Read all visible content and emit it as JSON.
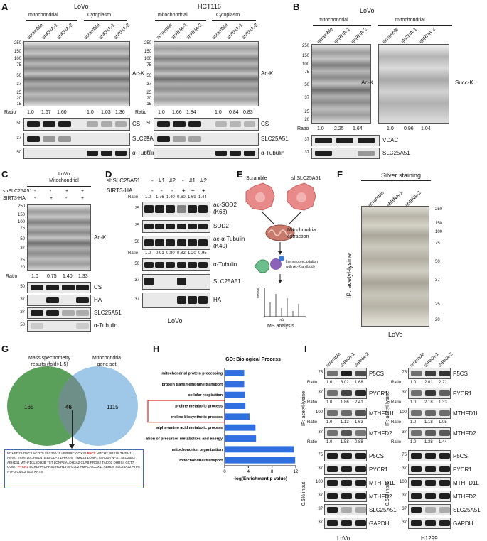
{
  "panels": {
    "A": {
      "letter": "A",
      "left": {
        "cell": "LoVo",
        "groups": [
          "mitochondrial",
          "Cytoplasm"
        ],
        "lanes": [
          "scramble",
          "shRNA-1",
          "shRNA-2",
          "scramble",
          "shRNA-1",
          "shRNA-2"
        ],
        "mw_main": [
          "250",
          "150",
          "100",
          "75",
          "50",
          "37",
          "25",
          "20",
          "15"
        ],
        "blot_label": "Ac-K",
        "ratio_label": "Ratio",
        "ratios": [
          "1.0",
          "1.67",
          "1.60",
          "1.0",
          "1.03",
          "1.36"
        ],
        "sub_blots": [
          {
            "label": "CS",
            "mw": "50"
          },
          {
            "label": "SLC25A51",
            "mw": "37"
          },
          {
            "label": "α-Tubulin",
            "mw": "50"
          }
        ]
      },
      "right": {
        "cell": "HCT116",
        "groups": [
          "mitochondrial",
          "Cytoplasm"
        ],
        "lanes": [
          "scramble",
          "shRNA-1",
          "shRNA-2",
          "scramble",
          "shRNA-1",
          "shRNA-2"
        ],
        "mw_main": [
          "250",
          "150",
          "100",
          "75",
          "50",
          "37",
          "25",
          "20",
          "15"
        ],
        "blot_label": "Ac-K",
        "ratio_label": "Ratio",
        "ratios": [
          "1.0",
          "1.66",
          "1.84",
          "1.0",
          "0.84",
          "0.83"
        ],
        "sub_blots": [
          {
            "label": "CS",
            "mw": "50"
          },
          {
            "label": "SLC25A51",
            "mw": "37"
          },
          {
            "label": "α-Tubulin",
            "mw": "50"
          }
        ]
      }
    },
    "B": {
      "letter": "B",
      "cell": "LoVo",
      "groups": [
        "mitochondrial",
        "mitochondrial"
      ],
      "lanes": [
        "scramble",
        "shRNA-1",
        "shRNA-2",
        "scramble",
        "shRNA-1",
        "shRNA-2"
      ],
      "mw_main": [
        "250",
        "150",
        "100",
        "75",
        "50",
        "37",
        "25",
        "20"
      ],
      "label_left": "Ac-K",
      "label_right": "Succ-K",
      "ratio_label": "Ratio",
      "ratios_left": [
        "1.0",
        "2.25",
        "1.64"
      ],
      "ratios_right": [
        "1.0",
        "0.96",
        "1.04"
      ],
      "sub_blots": [
        {
          "label": "VDAC",
          "mw": "37"
        },
        {
          "label": "SLC25A51",
          "mw": "37"
        }
      ]
    },
    "C": {
      "letter": "C",
      "title_line1": "LoVo",
      "title_line2": "Mitochondrial",
      "row1_label": "shSLC25A51",
      "row1_signs": [
        "-",
        "-",
        "+",
        "+"
      ],
      "row2_label": "SIRT3-HA",
      "row2_signs": [
        "-",
        "+",
        "-",
        "+"
      ],
      "mw_main": [
        "250",
        "150",
        "100",
        "75",
        "50",
        "37",
        "25",
        "20"
      ],
      "blot_label": "Ac-K",
      "ratio_label": "Ratio",
      "ratios": [
        "1.0",
        "0.75",
        "1.40",
        "1.33"
      ],
      "sub_blots": [
        {
          "label": "CS",
          "mw": "50"
        },
        {
          "label": "HA",
          "mw": "37"
        },
        {
          "label": "SLC25A51",
          "mw": "37"
        },
        {
          "label": "α-Tubulin",
          "mw": "50"
        }
      ]
    },
    "D": {
      "letter": "D",
      "row1_label": "shSLC25A51",
      "row1_signs": [
        "-",
        "#1",
        "#2",
        "-",
        "#1",
        "#2"
      ],
      "row2_label": "SIRT3-HA",
      "row2_signs": [
        "-",
        "-",
        "-",
        "+",
        "+",
        "+"
      ],
      "blots": [
        {
          "label": "ac-SOD2\n(K68)",
          "mw": "25"
        },
        {
          "label": "SOD2",
          "mw": "25"
        },
        {
          "label": "ac-α-Tubulin\n(K40)",
          "mw": "50"
        },
        {
          "label": "α-Tubulin",
          "mw": "50"
        },
        {
          "label": "SLC25A51",
          "mw": "37"
        },
        {
          "label": "HA",
          "mw": "37"
        }
      ],
      "ratio_label": "Ratio",
      "ratios1": [
        "1.0",
        "1.76",
        "1.40",
        "0.60",
        "1.69",
        "1.44"
      ],
      "ratios2": [
        "1.0",
        "0.91",
        "0.80",
        "0.82",
        "1.20",
        "0.95"
      ],
      "cell": "LoVo"
    },
    "E": {
      "letter": "E",
      "left_label": "Scramble",
      "right_label": "shSLC25A51",
      "step1": "Mitochondria\nextraction",
      "step2": "Immunoprecipitation\nwith Ac-K antibody",
      "ms_ylabel": "Intensity",
      "ms_xlabel": "m/z",
      "step3": "MS analysis",
      "colors": {
        "cell": "#e98a8a",
        "mito": "#c87a6c",
        "antibody": "#3b7bd0",
        "protein": "#8b62b8",
        "bead": "#6cbf8c"
      }
    },
    "F": {
      "letter": "F",
      "title": "Silver staining",
      "lanes": [
        "scramble",
        "shRNA-1",
        "shRNA-2"
      ],
      "mw": [
        "250",
        "150",
        "100",
        "75",
        "50",
        "37",
        "25",
        "20"
      ],
      "ylabel": "IP: acetyl-lysine",
      "cell": "LoVo"
    },
    "G": {
      "letter": "G",
      "left_title": "Mass spectrometry\nresults (fold>1.5)",
      "right_title": "Mitochondria\ngene set",
      "left_count": "165",
      "mid_count": "46",
      "right_count": "1115",
      "gene_text_1": "MTHFD2 VDAC2 ACOT9 SLC25A15 LRPPRC COX20 ",
      "gene_hl_1": "P5CS",
      "gene_text_2": " MTCH2 RPS18 TMEM11 AIFM1 TRMT10C HSD17B10 CLPX DHRS7B TIMM23 LONP1 ATAD3A NFS1 SLC25A3 ABHD11 MTHFD1L IDH3B TST LONP2 ALDH3A2 CLPB PRDX2 TACO1 DHRS4 CCT7 COMT ",
      "gene_hl_2": "PYCR1",
      "gene_text_3": " BCKDHA DARS2 RDH14 AFG3L2 PMPCA COX11 ABHD8 SLC25A22 ATP8 ATPO CMC2 GLS KRT5",
      "colors": {
        "left": "#5aa05a",
        "right": "#9ec7e8",
        "highlight": "#e02020"
      }
    },
    "H": {
      "letter": "H",
      "title": "GO: Biological Process",
      "xlabel": "-log(Enrichment p value)",
      "highlight_color": "#e02020",
      "bar_color": "#2f6fe0"
    },
    "I": {
      "letter": "I",
      "lanes": [
        "scramble",
        "shRNA-1",
        "shRNA-2"
      ],
      "ip_label": "IP: acetyl-lysine",
      "input_label": "0.5% input",
      "ratio_label": "Ratio",
      "left_cell": "LoVo",
      "right_cell": "H1299",
      "ip_blots": [
        {
          "label": "P5CS",
          "mw": "75"
        },
        {
          "label": "PYCR1",
          "mw": "37"
        },
        {
          "label": "MTHFD1L",
          "mw": "100"
        },
        {
          "label": "MTHFD2",
          "mw": "37"
        }
      ],
      "input_blots": [
        {
          "label": "P5CS",
          "mw": "75"
        },
        {
          "label": "PYCR1",
          "mw": "37"
        },
        {
          "label": "MTHFD1L",
          "mw": "100"
        },
        {
          "label": "MTHFD2",
          "mw": "37"
        },
        {
          "label": "SLC25A51",
          "mw": "37"
        },
        {
          "label": "GAPDH",
          "mw": "37"
        }
      ],
      "left_ratios": [
        [
          "1.0",
          "3.02",
          "1.68"
        ],
        [
          "1.0",
          "1.86",
          "2.41"
        ],
        [
          "1.0",
          "1.13",
          "1.63"
        ],
        [
          "1.0",
          "1.58",
          "0.88"
        ]
      ],
      "right_ratios": [
        [
          "1.0",
          "2.01",
          "2.21"
        ],
        [
          "1.0",
          "2.18",
          "1.33"
        ],
        [
          "1.0",
          "1.18",
          "1.05"
        ],
        [
          "1.0",
          "1.38",
          "1.44"
        ]
      ]
    }
  },
  "chart_data": {
    "type": "bar",
    "orientation": "horizontal",
    "title": "GO: Biological Process",
    "xlabel": "-log(Enrichment p value)",
    "ylabel": "",
    "xlim": [
      0,
      12
    ],
    "xticks": [
      "0",
      "4",
      "8",
      "12"
    ],
    "categories": [
      "mitochondrial protein processing",
      "protein transmembrane transport",
      "cellular respiration",
      "proline metabolic process",
      "proline biosynthetic process",
      "alpha-amino acid metabolic process",
      "generation of precursor metabolites and energy",
      "mitochondrion organization",
      "mitochondrial transport"
    ],
    "values": [
      3.3,
      3.3,
      3.4,
      3.5,
      4.2,
      5.2,
      5.3,
      11.7,
      11.9
    ],
    "highlighted": [
      "proline metabolic process",
      "proline biosynthetic process"
    ]
  }
}
